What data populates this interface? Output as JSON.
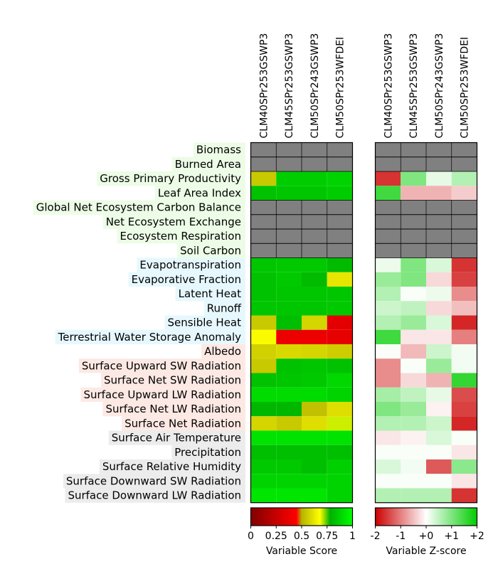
{
  "chart_data": {
    "type": "heatmap",
    "columns": [
      "CLM40SPr253GSWP3",
      "CLM45SPr253GSWP3",
      "CLM50SPr243GSWP3",
      "CLM50SPr253WFDEI"
    ],
    "rows": [
      {
        "label": "Biomass",
        "group": "ecosystem"
      },
      {
        "label": "Burned Area",
        "group": "ecosystem"
      },
      {
        "label": "Gross Primary Productivity",
        "group": "ecosystem"
      },
      {
        "label": "Leaf Area Index",
        "group": "ecosystem"
      },
      {
        "label": "Global Net Ecosystem Carbon Balance",
        "group": "ecosystem"
      },
      {
        "label": "Net Ecosystem Exchange",
        "group": "ecosystem"
      },
      {
        "label": "Ecosystem Respiration",
        "group": "ecosystem"
      },
      {
        "label": "Soil Carbon",
        "group": "ecosystem"
      },
      {
        "label": "Evapotranspiration",
        "group": "hydrology"
      },
      {
        "label": "Evaporative Fraction",
        "group": "hydrology"
      },
      {
        "label": "Latent Heat",
        "group": "hydrology"
      },
      {
        "label": "Runoff",
        "group": "hydrology"
      },
      {
        "label": "Sensible Heat",
        "group": "hydrology"
      },
      {
        "label": "Terrestrial Water Storage Anomaly",
        "group": "hydrology"
      },
      {
        "label": "Albedo",
        "group": "radiation"
      },
      {
        "label": "Surface Upward SW Radiation",
        "group": "radiation"
      },
      {
        "label": "Surface Net SW Radiation",
        "group": "radiation"
      },
      {
        "label": "Surface Upward LW Radiation",
        "group": "radiation"
      },
      {
        "label": "Surface Net LW Radiation",
        "group": "radiation"
      },
      {
        "label": "Surface Net Radiation",
        "group": "radiation"
      },
      {
        "label": "Surface Air Temperature",
        "group": "forcing"
      },
      {
        "label": "Precipitation",
        "group": "forcing"
      },
      {
        "label": "Surface Relative Humidity",
        "group": "forcing"
      },
      {
        "label": "Surface Downward SW Radiation",
        "group": "forcing"
      },
      {
        "label": "Surface Downward LW Radiation",
        "group": "forcing"
      }
    ],
    "group_colors": {
      "ecosystem": "#ecfce6",
      "hydrology": "#e6f8fe",
      "radiation": "#fde9e4",
      "forcing": "#ececec"
    },
    "missing_color": "#808080",
    "scores": [
      [
        null,
        null,
        null,
        null
      ],
      [
        null,
        null,
        null,
        null
      ],
      [
        0.55,
        0.86,
        0.86,
        0.88
      ],
      [
        0.83,
        0.84,
        0.84,
        0.86
      ],
      [
        null,
        null,
        null,
        null
      ],
      [
        null,
        null,
        null,
        null
      ],
      [
        null,
        null,
        null,
        null
      ],
      [
        null,
        null,
        null,
        null
      ],
      [
        0.84,
        0.85,
        0.85,
        0.81
      ],
      [
        0.83,
        0.85,
        0.81,
        0.62
      ],
      [
        0.83,
        0.84,
        0.84,
        0.84
      ],
      [
        0.84,
        0.84,
        0.84,
        0.85
      ],
      [
        0.55,
        0.82,
        0.58,
        0.35
      ],
      [
        0.67,
        0.38,
        0.38,
        0.36
      ],
      [
        0.57,
        0.59,
        0.58,
        0.56
      ],
      [
        0.55,
        0.83,
        0.84,
        0.83
      ],
      [
        0.83,
        0.84,
        0.85,
        0.89
      ],
      [
        0.9,
        0.9,
        0.9,
        0.88
      ],
      [
        0.8,
        0.8,
        0.53,
        0.6
      ],
      [
        0.58,
        0.55,
        0.6,
        0.7
      ],
      [
        0.92,
        0.92,
        0.92,
        0.92
      ],
      [
        0.82,
        0.82,
        0.82,
        0.82
      ],
      [
        0.85,
        0.85,
        0.82,
        0.87
      ],
      [
        0.88,
        0.88,
        0.88,
        0.88
      ],
      [
        0.93,
        0.93,
        0.93,
        0.88
      ]
    ],
    "zscores": [
      [
        null,
        null,
        null,
        null
      ],
      [
        null,
        null,
        null,
        null
      ],
      [
        -1.6,
        1.0,
        0.2,
        0.6
      ],
      [
        1.5,
        -0.6,
        -0.6,
        -0.4
      ],
      [
        null,
        null,
        null,
        null
      ],
      [
        null,
        null,
        null,
        null
      ],
      [
        null,
        null,
        null,
        null
      ],
      [
        null,
        null,
        null,
        null
      ],
      [
        0.15,
        1.0,
        0.3,
        -1.6
      ],
      [
        0.8,
        1.0,
        -0.3,
        -1.5
      ],
      [
        0.6,
        0.05,
        0.15,
        -0.9
      ],
      [
        0.4,
        0.5,
        -0.3,
        -0.5
      ],
      [
        0.6,
        0.8,
        0.3,
        -1.7
      ],
      [
        1.5,
        -0.2,
        -0.2,
        -1.0
      ],
      [
        0.05,
        -0.55,
        0.4,
        0.1
      ],
      [
        -0.9,
        0.05,
        0.8,
        0.1
      ],
      [
        -0.9,
        -0.3,
        -0.6,
        1.6
      ],
      [
        0.7,
        0.5,
        0.2,
        -1.4
      ],
      [
        1.0,
        0.8,
        -0.1,
        -1.5
      ],
      [
        0.6,
        0.6,
        0.4,
        -1.7
      ],
      [
        -0.2,
        -0.1,
        0.3,
        0.05
      ],
      [
        0.05,
        0.05,
        0.05,
        -0.2
      ],
      [
        0.3,
        0.1,
        -1.3,
        0.9
      ],
      [
        0.05,
        0.05,
        0.05,
        -0.2
      ],
      [
        0.6,
        0.6,
        0.6,
        -1.6
      ]
    ],
    "score_colorbar": {
      "ticks": [
        "0",
        "0.25",
        "0.5",
        "0.75",
        "1"
      ],
      "xlabel": "Variable Score",
      "range": [
        0,
        1
      ]
    },
    "zscore_colorbar": {
      "ticks": [
        "-2",
        "-1",
        "+0",
        "+1",
        "+2"
      ],
      "xlabel": "Variable Z-score",
      "range": [
        -2,
        2
      ]
    }
  }
}
